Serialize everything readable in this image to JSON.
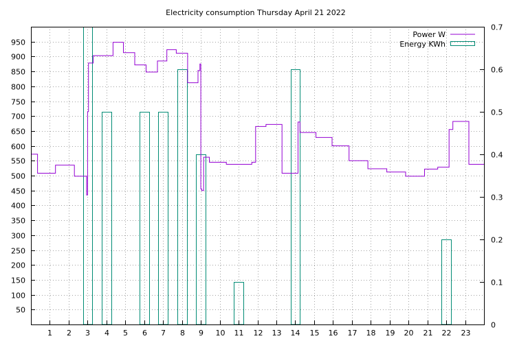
{
  "chart_data": {
    "type": "line",
    "title": "Electricity consumption Thursday April 21 2022",
    "grid": true,
    "legend_position": "top-right",
    "x_ticks": [
      1,
      2,
      3,
      4,
      5,
      6,
      7,
      8,
      9,
      10,
      11,
      12,
      13,
      14,
      15,
      16,
      17,
      18,
      19,
      20,
      21,
      22,
      23
    ],
    "xlim": [
      0,
      24
    ],
    "y_ticks": [
      50,
      100,
      150,
      200,
      250,
      300,
      350,
      400,
      450,
      500,
      550,
      600,
      650,
      700,
      750,
      800,
      850,
      900,
      950
    ],
    "ylim": [
      0,
      1000
    ],
    "y2_ticks": [
      "0",
      "0.1",
      "0.2",
      "0.3",
      "0.4",
      "0.5",
      "0.6",
      "0.7"
    ],
    "y2lim": [
      0,
      0.7
    ],
    "series": [
      {
        "name": "Power W",
        "color": "#9400d3",
        "axis": "y",
        "style": "steps",
        "x": [
          0,
          0.35,
          1.3,
          2.3,
          2.95,
          3.0,
          3.05,
          3.1,
          3.15,
          3.3,
          4.35,
          4.9,
          5.5,
          6.1,
          6.7,
          7.2,
          7.7,
          8.3,
          8.85,
          8.95,
          9.0,
          9.05,
          9.15,
          9.45,
          10.35,
          11.7,
          11.9,
          12.45,
          13.3,
          14.15,
          14.25,
          15.1,
          15.95,
          16.85,
          17.85,
          18.85,
          19.85,
          20.85,
          21.55,
          22.15,
          22.35,
          23.2,
          24
        ],
        "y": [
          572,
          508,
          535,
          498,
          435,
          715,
          878,
          878,
          878,
          903,
          948,
          913,
          872,
          848,
          885,
          923,
          911,
          812,
          853,
          875,
          455,
          450,
          562,
          545,
          538,
          545,
          665,
          672,
          508,
          680,
          645,
          628,
          600,
          550,
          523,
          512,
          498,
          522,
          528,
          655,
          682,
          538,
          538
        ]
      },
      {
        "name": "Energy KWh",
        "color": "#008b74",
        "axis": "y2",
        "style": "boxes",
        "x": [
          3,
          4,
          6,
          7,
          8,
          9,
          11,
          14,
          22
        ],
        "y": [
          0.7,
          0.5,
          0.5,
          0.5,
          0.6,
          0.4,
          0.1,
          0.6,
          0.2
        ]
      }
    ]
  }
}
